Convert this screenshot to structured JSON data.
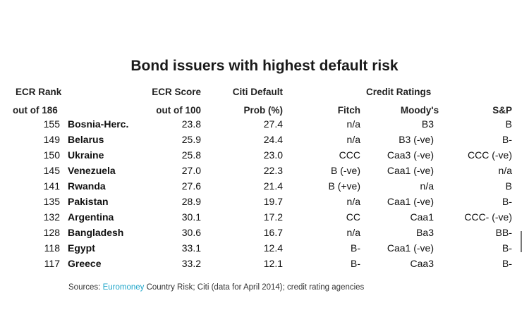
{
  "title": "Bond issuers with highest default risk",
  "headers": {
    "rank_line1": "ECR Rank",
    "rank_line2": "out of 186",
    "score_line1": "ECR Score",
    "score_line2": "out of 100",
    "prob_line1": "Citi Default",
    "prob_line2": "Prob (%)",
    "ratings": "Credit Ratings",
    "fitch": "Fitch",
    "moodys": "Moody's",
    "sp": "S&P"
  },
  "chart_data": {
    "type": "table",
    "title": "Bond issuers with highest default risk",
    "columns": [
      "ECR Rank out of 186",
      "Country",
      "ECR Score out of 100",
      "Citi Default Prob (%)",
      "Fitch",
      "Moody's",
      "S&P"
    ],
    "rows": [
      {
        "rank": "155",
        "country": "Bosnia-Herc.",
        "score": "23.8",
        "prob": "27.4",
        "fitch": "n/a",
        "moodys": "B3",
        "sp": "B"
      },
      {
        "rank": "149",
        "country": "Belarus",
        "score": "25.9",
        "prob": "24.4",
        "fitch": "n/a",
        "moodys": "B3 (-ve)",
        "sp": "B-"
      },
      {
        "rank": "150",
        "country": "Ukraine",
        "score": "25.8",
        "prob": "23.0",
        "fitch": "CCC",
        "moodys": "Caa3 (-ve)",
        "sp": "CCC (-ve)"
      },
      {
        "rank": "145",
        "country": "Venezuela",
        "score": "27.0",
        "prob": "22.3",
        "fitch": "B (-ve)",
        "moodys": "Caa1 (-ve)",
        "sp": "n/a"
      },
      {
        "rank": "141",
        "country": "Rwanda",
        "score": "27.6",
        "prob": "21.4",
        "fitch": "B (+ve)",
        "moodys": "n/a",
        "sp": "B"
      },
      {
        "rank": "135",
        "country": "Pakistan",
        "score": "28.9",
        "prob": "19.7",
        "fitch": "n/a",
        "moodys": "Caa1 (-ve)",
        "sp": "B-"
      },
      {
        "rank": "132",
        "country": "Argentina",
        "score": "30.1",
        "prob": "17.2",
        "fitch": "CC",
        "moodys": "Caa1",
        "sp": "CCC- (-ve)"
      },
      {
        "rank": "128",
        "country": "Bangladesh",
        "score": "30.6",
        "prob": "16.7",
        "fitch": "n/a",
        "moodys": "Ba3",
        "sp": "BB-"
      },
      {
        "rank": "118",
        "country": "Egypt",
        "score": "33.1",
        "prob": "12.4",
        "fitch": "B-",
        "moodys": "Caa1 (-ve)",
        "sp": "B-"
      },
      {
        "rank": "117",
        "country": "Greece",
        "score": "33.2",
        "prob": "12.1",
        "fitch": "B-",
        "moodys": "Caa3",
        "sp": "B-"
      }
    ]
  },
  "source": {
    "prefix": "Sources: ",
    "highlight": "Euromoney",
    "suffix": " Country Risk; Citi (data for April 2014); credit rating agencies",
    "highlight_color": "#1ea5c9"
  }
}
